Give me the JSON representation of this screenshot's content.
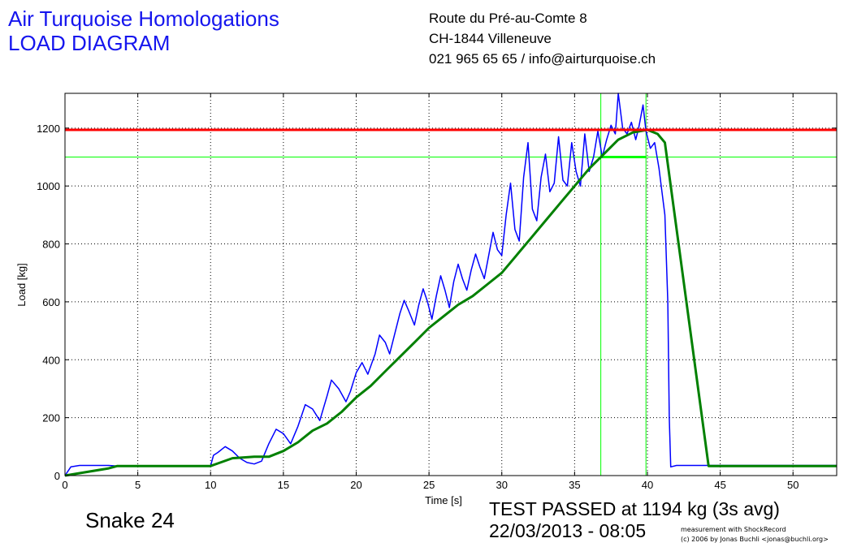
{
  "header": {
    "company": "Air Turquoise Homologations",
    "diagram_title": "LOAD DIAGRAM",
    "address_line1": "Route du Pré-au-Comte 8",
    "address_line2": "CH-1844 Villeneuve",
    "contact": "021 965 65 65 / info@airturquoise.ch"
  },
  "footer": {
    "sample_name": "Snake 24",
    "result": "TEST PASSED at 1194 kg (3s avg)",
    "datetime": "22/03/2013 - 08:05",
    "credit_line1": "measurement with ShockRecord",
    "credit_line2": "(c) 2006 by Jonas Buchli <jonas@buchli.org>"
  },
  "colors": {
    "raw_load": "#0000ff",
    "avg_load": "#008000",
    "limit_line": "#ff0000",
    "marker_lines": "#00ff00"
  },
  "chart_data": {
    "type": "line",
    "xlabel": "Time [s]",
    "ylabel": "Load [kg]",
    "xlim": [
      0,
      53
    ],
    "ylim": [
      0,
      1320
    ],
    "xticks": [
      0,
      5,
      10,
      15,
      20,
      25,
      30,
      35,
      40,
      45,
      50
    ],
    "yticks": [
      0,
      200,
      400,
      600,
      800,
      1000,
      1200
    ],
    "grid": true,
    "reference_lines": {
      "horizontal": [
        1194,
        1100
      ],
      "vertical": [
        36.8,
        39.9
      ],
      "plateau_segment": {
        "x": [
          36.8,
          39.9
        ],
        "y": 1100
      }
    },
    "series": [
      {
        "points": [
          [
            0,
            0
          ],
          [
            0.4,
            30
          ],
          [
            1,
            35
          ],
          [
            3,
            35
          ],
          [
            3.6,
            33
          ],
          [
            10,
            33
          ],
          [
            10.2,
            70
          ],
          [
            10.5,
            80
          ],
          [
            11,
            100
          ],
          [
            11.5,
            85
          ],
          [
            12,
            60
          ],
          [
            12.5,
            45
          ],
          [
            13,
            40
          ],
          [
            13.5,
            50
          ],
          [
            14,
            110
          ],
          [
            14.5,
            160
          ],
          [
            15,
            145
          ],
          [
            15.5,
            110
          ],
          [
            16,
            170
          ],
          [
            16.5,
            245
          ],
          [
            17,
            230
          ],
          [
            17.5,
            190
          ],
          [
            18,
            275
          ],
          [
            18.3,
            330
          ],
          [
            18.8,
            300
          ],
          [
            19.3,
            255
          ],
          [
            19.6,
            290
          ],
          [
            20,
            355
          ],
          [
            20.4,
            390
          ],
          [
            20.8,
            350
          ],
          [
            21.3,
            420
          ],
          [
            21.6,
            485
          ],
          [
            22,
            460
          ],
          [
            22.3,
            420
          ],
          [
            22.6,
            480
          ],
          [
            23,
            560
          ],
          [
            23.3,
            605
          ],
          [
            23.6,
            570
          ],
          [
            24,
            520
          ],
          [
            24.3,
            590
          ],
          [
            24.6,
            645
          ],
          [
            24.9,
            600
          ],
          [
            25.2,
            540
          ],
          [
            25.5,
            620
          ],
          [
            25.8,
            690
          ],
          [
            26.1,
            640
          ],
          [
            26.4,
            580
          ],
          [
            26.7,
            670
          ],
          [
            27,
            730
          ],
          [
            27.3,
            680
          ],
          [
            27.6,
            640
          ],
          [
            27.9,
            710
          ],
          [
            28.2,
            765
          ],
          [
            28.5,
            720
          ],
          [
            28.8,
            680
          ],
          [
            29.1,
            760
          ],
          [
            29.4,
            840
          ],
          [
            29.7,
            780
          ],
          [
            30,
            760
          ],
          [
            30.3,
            900
          ],
          [
            30.6,
            1010
          ],
          [
            30.9,
            850
          ],
          [
            31.2,
            810
          ],
          [
            31.5,
            1030
          ],
          [
            31.8,
            1150
          ],
          [
            32.1,
            920
          ],
          [
            32.4,
            880
          ],
          [
            32.7,
            1030
          ],
          [
            33,
            1110
          ],
          [
            33.3,
            980
          ],
          [
            33.6,
            1010
          ],
          [
            33.9,
            1170
          ],
          [
            34.2,
            1020
          ],
          [
            34.5,
            1000
          ],
          [
            34.8,
            1150
          ],
          [
            35.1,
            1050
          ],
          [
            35.4,
            1000
          ],
          [
            35.7,
            1180
          ],
          [
            36,
            1050
          ],
          [
            36.3,
            1100
          ],
          [
            36.6,
            1190
          ],
          [
            36.9,
            1100
          ],
          [
            37.2,
            1160
          ],
          [
            37.5,
            1210
          ],
          [
            37.8,
            1180
          ],
          [
            38,
            1320
          ],
          [
            38.3,
            1200
          ],
          [
            38.6,
            1180
          ],
          [
            38.9,
            1220
          ],
          [
            39.2,
            1160
          ],
          [
            39.4,
            1200
          ],
          [
            39.7,
            1280
          ],
          [
            39.9,
            1190
          ],
          [
            40.2,
            1130
          ],
          [
            40.5,
            1150
          ],
          [
            40.8,
            1060
          ],
          [
            41,
            980
          ],
          [
            41.2,
            900
          ],
          [
            41.4,
            600
          ],
          [
            41.5,
            200
          ],
          [
            41.6,
            30
          ],
          [
            42,
            35
          ],
          [
            43,
            35
          ],
          [
            50,
            35
          ],
          [
            53,
            35
          ]
        ]
      },
      {
        "points": [
          [
            0,
            0
          ],
          [
            3,
            25
          ],
          [
            3.6,
            33
          ],
          [
            10,
            33
          ],
          [
            10.5,
            42
          ],
          [
            11.5,
            60
          ],
          [
            13,
            65
          ],
          [
            14,
            65
          ],
          [
            15,
            85
          ],
          [
            16,
            115
          ],
          [
            17,
            155
          ],
          [
            18,
            180
          ],
          [
            19,
            220
          ],
          [
            20,
            270
          ],
          [
            21,
            310
          ],
          [
            22,
            360
          ],
          [
            23,
            410
          ],
          [
            24,
            460
          ],
          [
            25,
            510
          ],
          [
            26,
            550
          ],
          [
            27,
            590
          ],
          [
            28,
            620
          ],
          [
            29,
            660
          ],
          [
            30,
            700
          ],
          [
            31,
            760
          ],
          [
            32,
            820
          ],
          [
            33,
            880
          ],
          [
            34,
            940
          ],
          [
            35,
            1000
          ],
          [
            36,
            1060
          ],
          [
            37,
            1110
          ],
          [
            38,
            1160
          ],
          [
            39,
            1185
          ],
          [
            40,
            1194
          ],
          [
            40.7,
            1180
          ],
          [
            41.2,
            1150
          ],
          [
            44.2,
            33
          ],
          [
            53,
            33
          ]
        ]
      }
    ]
  }
}
